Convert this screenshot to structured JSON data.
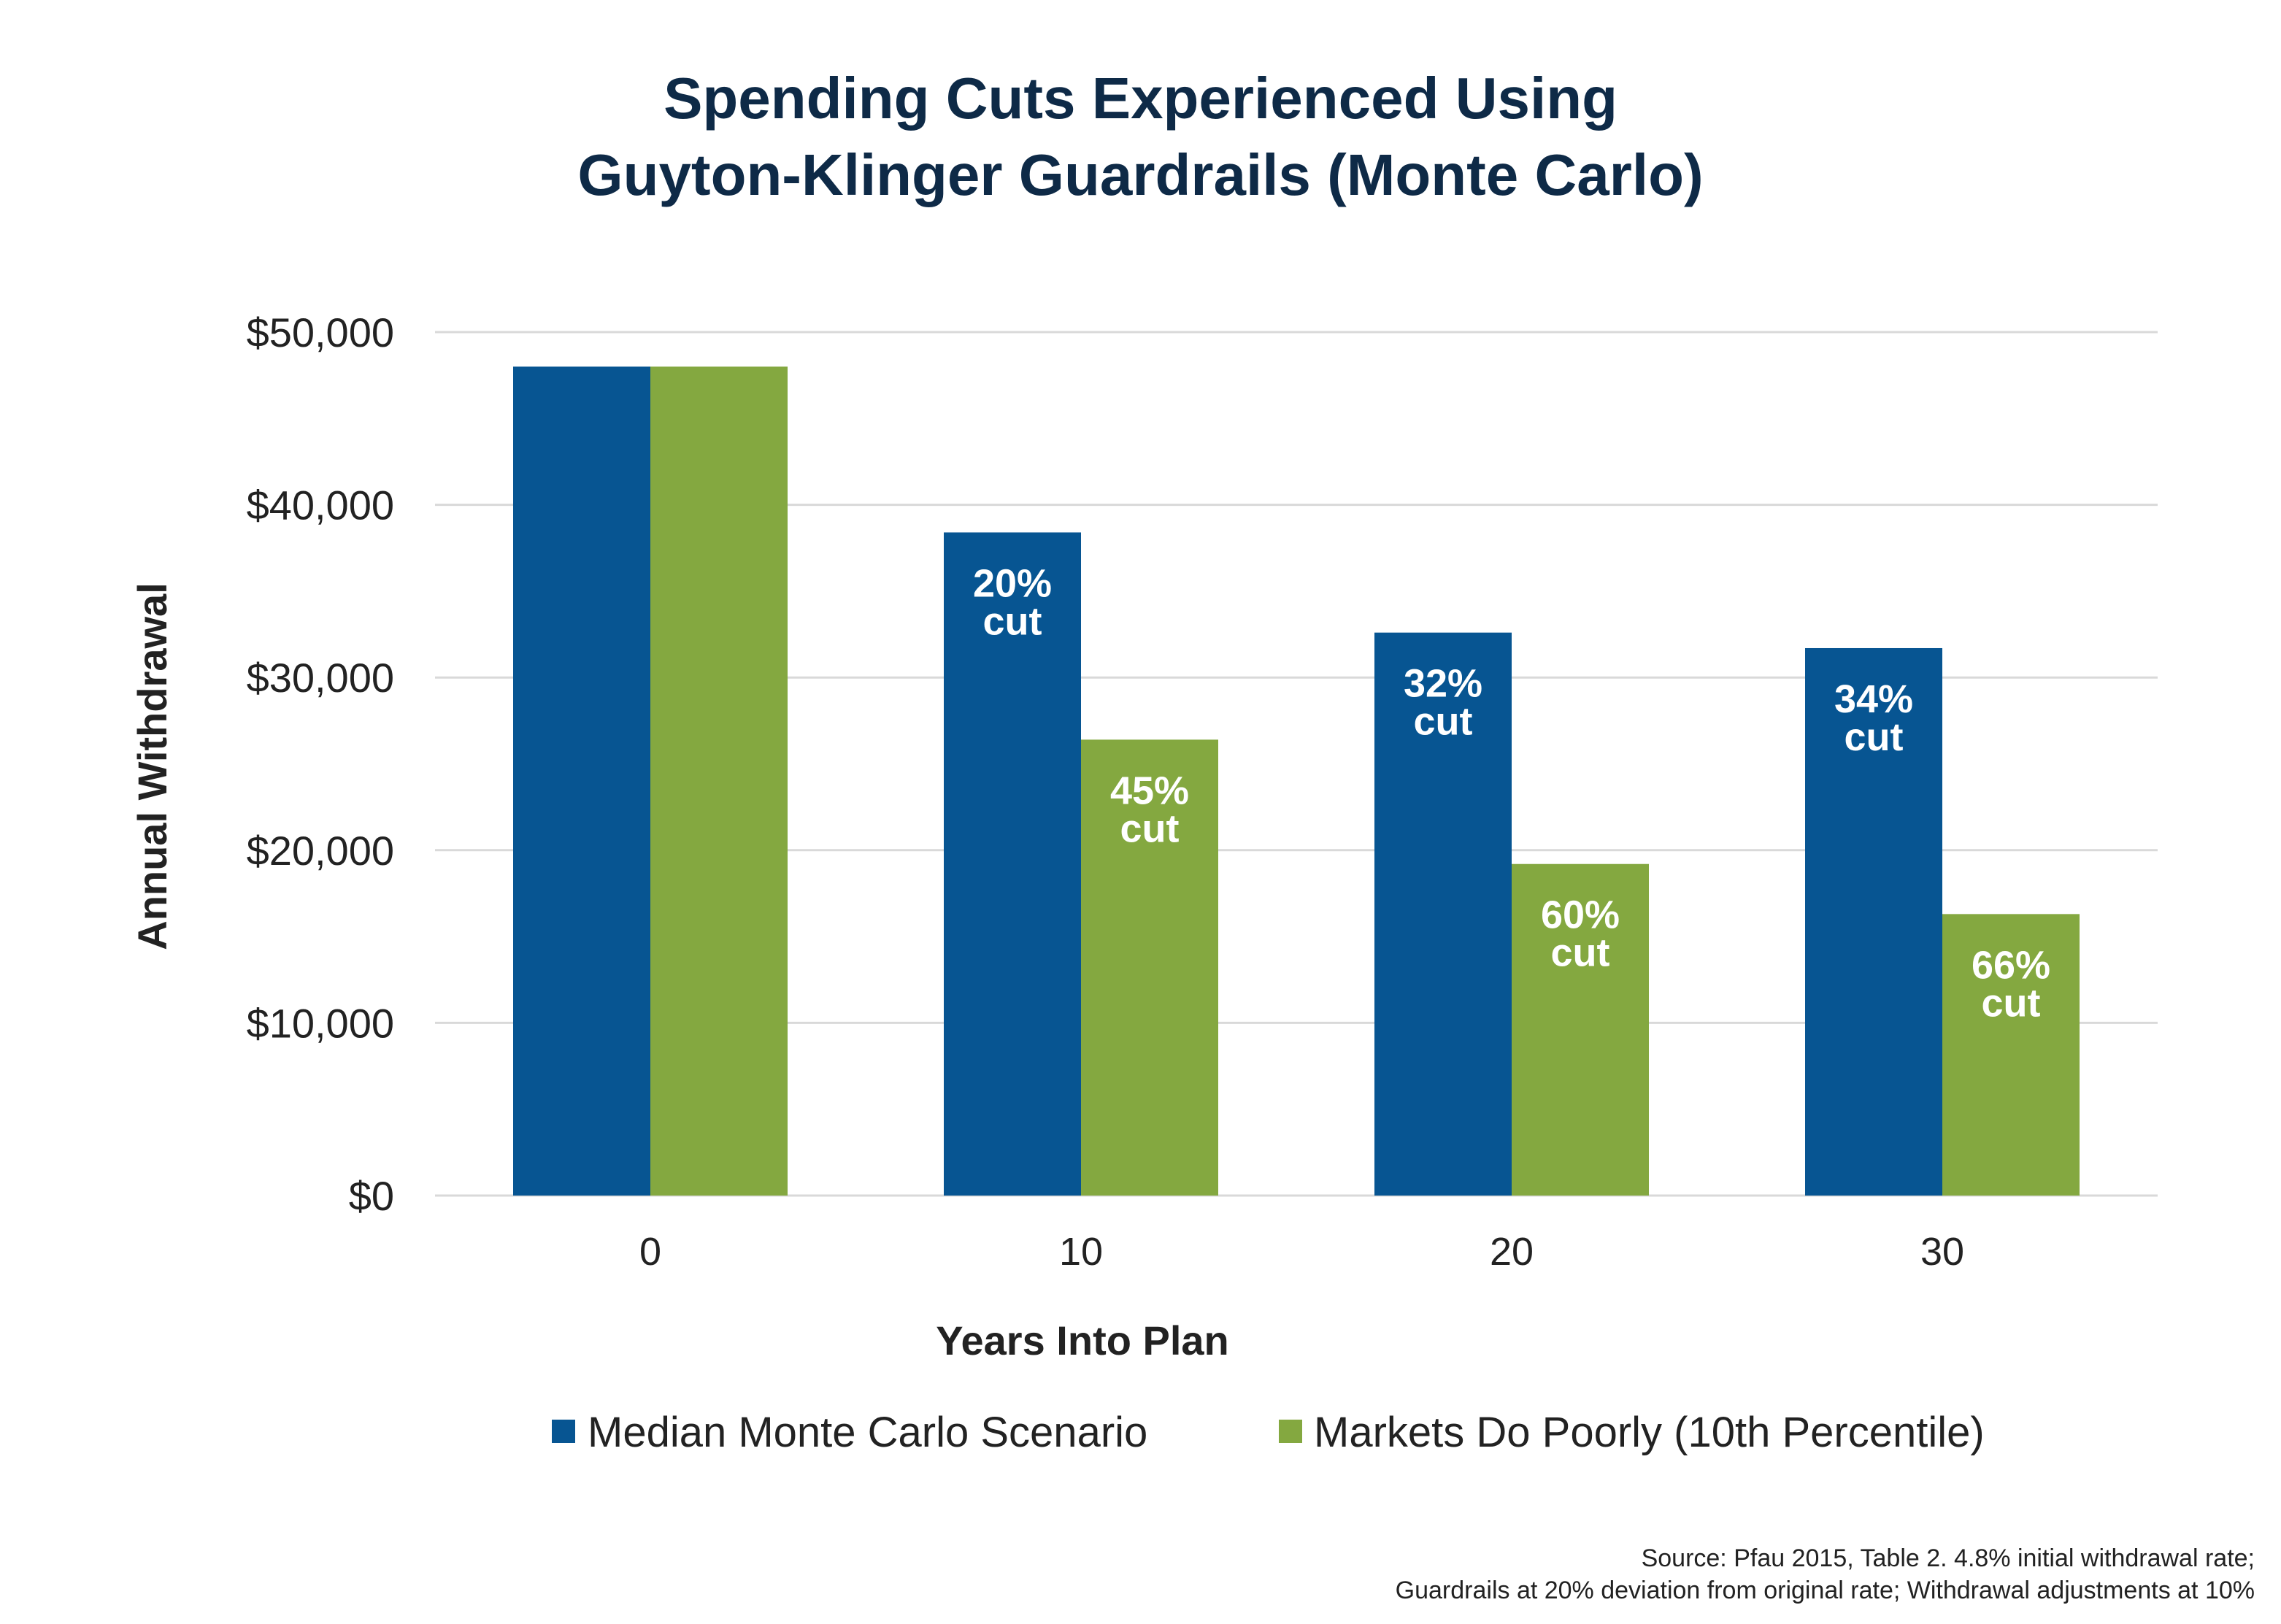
{
  "chart_data": {
    "type": "bar",
    "title_lines": [
      "Spending Cuts Experienced Using",
      "Guyton-Klinger Guardrails (Monte Carlo)"
    ],
    "xlabel": "Years Into Plan",
    "ylabel": "Annual Withdrawal",
    "categories": [
      "0",
      "10",
      "20",
      "30"
    ],
    "y_ticks": [
      0,
      10000,
      20000,
      30000,
      40000,
      50000
    ],
    "y_tick_labels": [
      "$0",
      "$10,000",
      "$20,000",
      "$30,000",
      "$40,000",
      "$50,000"
    ],
    "ylim": [
      0,
      50000
    ],
    "grid": true,
    "legend_position": "bottom",
    "series": [
      {
        "name": "Median Monte Carlo Scenario",
        "color": "#075592",
        "values": [
          48000,
          38400,
          32600,
          31700
        ],
        "labels": [
          [],
          [
            "20%",
            "cut"
          ],
          [
            "32%",
            "cut"
          ],
          [
            "34%",
            "cut"
          ]
        ]
      },
      {
        "name": "Markets Do Poorly (10th Percentile)",
        "color": "#84a840",
        "values": [
          48000,
          26400,
          19200,
          16300
        ],
        "labels": [
          [],
          [
            "45%",
            "cut"
          ],
          [
            "60%",
            "cut"
          ],
          [
            "66%",
            "cut"
          ]
        ]
      }
    ],
    "source_lines": [
      "Source: Pfau 2015, Table 2. 4.8% initial withdrawal rate;",
      "Guardrails at 20% deviation from original rate; Withdrawal adjustments at 10%"
    ]
  },
  "colors": {
    "title": "#0e2a47",
    "axis_text": "#222222",
    "grid": "#d9d9d9",
    "bar_label": "#ffffff"
  }
}
